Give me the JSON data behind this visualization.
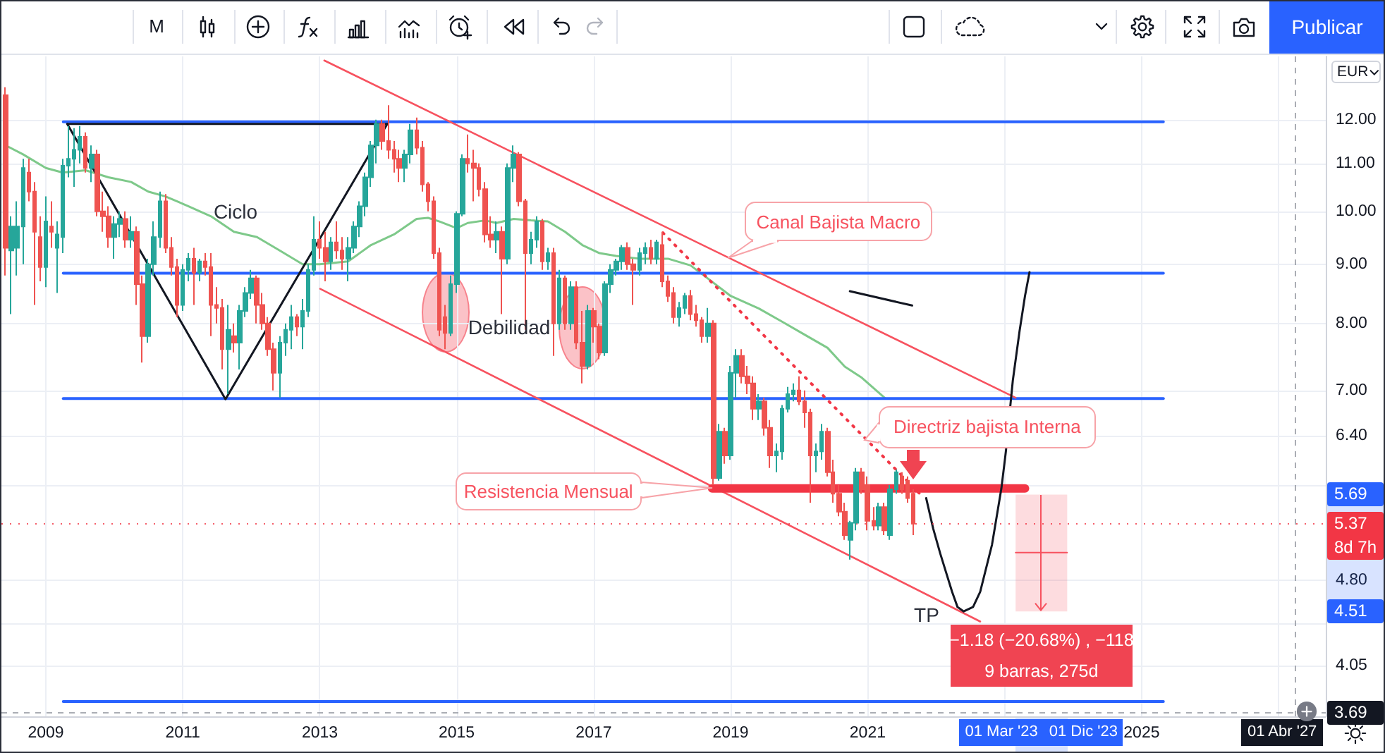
{
  "chart_data": {
    "type": "candlestick",
    "ylabel": "EUR",
    "xlim": [
      "2008-05-09",
      "2027-09-10"
    ],
    "ylim": [
      3.66,
      13.61
    ],
    "log": true,
    "grid": true,
    "xticks": [
      "2009",
      "2011",
      "2013",
      "2015",
      "2017",
      "2019",
      "2021",
      {
        "value": "2023",
        "label": null
      },
      "2025",
      {
        "value": "2027",
        "label": null
      }
    ],
    "yticks": [
      {
        "value": 12,
        "label": "12.00"
      },
      {
        "value": 11,
        "label": "11.00"
      },
      {
        "value": 10,
        "label": "10.00"
      },
      {
        "value": 9,
        "label": "9.00"
      },
      {
        "value": 8,
        "label": "8.00"
      },
      {
        "value": 7,
        "label": "7.00"
      },
      {
        "value": 6.4,
        "label": "6.40"
      },
      {
        "value": 5.8,
        "label": null
      },
      {
        "value": 4.8,
        "label": "4.80"
      },
      {
        "value": 4.4,
        "label": null
      },
      4.05
    ],
    "series": [
      {
        "type": "candlestick",
        "x": [
          "2008-06",
          "2008-07",
          "2008-08",
          "2008-09",
          "2008-10",
          "2008-11",
          "2008-12",
          "2009-01",
          "2009-02",
          "2009-03",
          "2009-04",
          "2009-05",
          "2009-06",
          "2009-07",
          "2009-08",
          "2009-09",
          "2009-10",
          "2009-11",
          "2009-12",
          "2010-01",
          "2010-02",
          "2010-03",
          "2010-04",
          "2010-05",
          "2010-06",
          "2010-07",
          "2010-08",
          "2010-09",
          "2010-10",
          "2010-11",
          "2010-12",
          "2011-01",
          "2011-02",
          "2011-03",
          "2011-04",
          "2011-05",
          "2011-06",
          "2011-07",
          "2011-08",
          "2011-09",
          "2011-10",
          "2011-11",
          "2011-12",
          "2012-01",
          "2012-02",
          "2012-03",
          "2012-04",
          "2012-05",
          "2012-06",
          "2012-07",
          "2012-08",
          "2012-09",
          "2012-10",
          "2012-11",
          "2012-12",
          "2013-01",
          "2013-02",
          "2013-03",
          "2013-04",
          "2013-05",
          "2013-06",
          "2013-07",
          "2013-08",
          "2013-09",
          "2013-10",
          "2013-11",
          "2013-12",
          "2014-01",
          "2014-02",
          "2014-03",
          "2014-04",
          "2014-05",
          "2014-06",
          "2014-07",
          "2014-08",
          "2014-09",
          "2014-10",
          "2014-11",
          "2014-12",
          "2015-01",
          "2015-02",
          "2015-03",
          "2015-04",
          "2015-05",
          "2015-06",
          "2015-07",
          "2015-08",
          "2015-09",
          "2015-10",
          "2015-11",
          "2015-12",
          "2016-01",
          "2016-02",
          "2016-03",
          "2016-04",
          "2016-05",
          "2016-06",
          "2016-07",
          "2016-08",
          "2016-09",
          "2016-10",
          "2016-11",
          "2016-12",
          "2017-01",
          "2017-02",
          "2017-03",
          "2017-04",
          "2017-05",
          "2017-06",
          "2017-07",
          "2017-08",
          "2017-09",
          "2017-10",
          "2017-11",
          "2017-12",
          "2018-01",
          "2018-02",
          "2018-03",
          "2018-04",
          "2018-05",
          "2018-06",
          "2018-07",
          "2018-08",
          "2018-09",
          "2018-10",
          "2018-11",
          "2018-12",
          "2019-01",
          "2019-02",
          "2019-03",
          "2019-04",
          "2019-05",
          "2019-06",
          "2019-07",
          "2019-08",
          "2019-09",
          "2019-10",
          "2019-11",
          "2019-12",
          "2020-01",
          "2020-02",
          "2020-03",
          "2020-04",
          "2020-05",
          "2020-06",
          "2020-07",
          "2020-08",
          "2020-09",
          "2020-10",
          "2020-11",
          "2020-12",
          "2021-01",
          "2021-02",
          "2021-03",
          "2021-04",
          "2021-05",
          "2021-06",
          "2021-07",
          "2021-08",
          "2021-09"
        ],
        "ohlc": [
          [
            12.6,
            12.8,
            8.8,
            9.3
          ],
          [
            9.25,
            9.9,
            8.15,
            9.7
          ],
          [
            9.3,
            10.2,
            8.8,
            9.7
          ],
          [
            9.7,
            11.1,
            9.0,
            10.9
          ],
          [
            10.8,
            11.1,
            10.2,
            10.4
          ],
          [
            10.4,
            10.6,
            8.3,
            9.6
          ],
          [
            9.5,
            9.9,
            8.7,
            8.95
          ],
          [
            8.95,
            10.3,
            8.6,
            9.8
          ],
          [
            9.7,
            10.2,
            9.3,
            9.6
          ],
          [
            9.3,
            9.8,
            8.5,
            9.55
          ],
          [
            9.5,
            11.1,
            9.2,
            10.95
          ],
          [
            10.95,
            11.85,
            10.7,
            11.1
          ],
          [
            11.1,
            11.8,
            10.5,
            11.3
          ],
          [
            11.3,
            11.85,
            11.0,
            11.6
          ],
          [
            11.6,
            11.7,
            10.8,
            10.9
          ],
          [
            10.9,
            11.4,
            10.6,
            11.2
          ],
          [
            11.2,
            11.3,
            9.9,
            10.0
          ],
          [
            10.0,
            10.4,
            9.6,
            9.9
          ],
          [
            9.9,
            10.1,
            9.3,
            9.5
          ],
          [
            9.5,
            9.9,
            9.1,
            9.75
          ],
          [
            9.75,
            10.0,
            9.5,
            9.85
          ],
          [
            9.85,
            10.0,
            9.3,
            9.45
          ],
          [
            9.45,
            9.9,
            9.3,
            9.6
          ],
          [
            9.6,
            9.7,
            8.3,
            8.65
          ],
          [
            8.65,
            8.8,
            7.4,
            7.8
          ],
          [
            7.8,
            9.1,
            7.7,
            9.0
          ],
          [
            9.0,
            9.8,
            8.8,
            9.5
          ],
          [
            9.5,
            10.4,
            9.3,
            10.2
          ],
          [
            10.2,
            10.35,
            9.2,
            9.3
          ],
          [
            9.3,
            9.5,
            8.8,
            8.95
          ],
          [
            8.95,
            9.1,
            8.1,
            8.3
          ],
          [
            8.3,
            9.0,
            8.2,
            8.9
          ],
          [
            8.9,
            9.2,
            8.7,
            9.1
          ],
          [
            9.1,
            9.3,
            8.3,
            8.85
          ],
          [
            8.85,
            9.1,
            8.7,
            9.05
          ],
          [
            9.05,
            9.2,
            8.8,
            8.95
          ],
          [
            8.95,
            9.2,
            7.8,
            8.3
          ],
          [
            8.3,
            8.6,
            8.0,
            8.25
          ],
          [
            8.25,
            8.4,
            7.3,
            7.6
          ],
          [
            7.6,
            8.3,
            6.95,
            7.9
          ],
          [
            7.8,
            8.0,
            7.55,
            7.7
          ],
          [
            7.7,
            8.3,
            7.3,
            8.2
          ],
          [
            8.2,
            8.6,
            8.1,
            8.5
          ],
          [
            8.5,
            8.9,
            8.4,
            8.75
          ],
          [
            8.75,
            8.8,
            8.0,
            8.3
          ],
          [
            8.3,
            8.5,
            7.9,
            8.0
          ],
          [
            8.0,
            8.1,
            7.5,
            7.6
          ],
          [
            7.6,
            7.7,
            7.0,
            7.25
          ],
          [
            7.25,
            7.8,
            6.9,
            7.7
          ],
          [
            7.7,
            8.0,
            7.5,
            7.9
          ],
          [
            7.9,
            8.3,
            7.6,
            8.1
          ],
          [
            8.1,
            8.15,
            7.8,
            7.95
          ],
          [
            7.95,
            8.4,
            7.6,
            8.2
          ],
          [
            8.2,
            9.0,
            8.1,
            8.9
          ],
          [
            8.9,
            9.9,
            8.8,
            9.45
          ],
          [
            9.45,
            9.8,
            9.1,
            9.3
          ],
          [
            9.3,
            9.6,
            8.7,
            9.05
          ],
          [
            9.05,
            9.5,
            8.9,
            9.4
          ],
          [
            9.4,
            9.8,
            9.1,
            9.25
          ],
          [
            9.25,
            9.5,
            8.9,
            9.1
          ],
          [
            9.1,
            9.5,
            8.7,
            9.3
          ],
          [
            9.3,
            9.8,
            9.2,
            9.7
          ],
          [
            9.7,
            10.2,
            9.5,
            10.1
          ],
          [
            10.1,
            10.8,
            9.9,
            10.7
          ],
          [
            10.7,
            11.5,
            10.5,
            11.4
          ],
          [
            11.4,
            12.0,
            11.0,
            11.9
          ],
          [
            11.9,
            12.0,
            11.3,
            11.5
          ],
          [
            11.5,
            12.35,
            11.1,
            11.3
          ],
          [
            11.3,
            11.5,
            10.8,
            11.1
          ],
          [
            11.1,
            11.3,
            10.6,
            10.9
          ],
          [
            10.9,
            11.3,
            10.6,
            11.2
          ],
          [
            11.2,
            11.9,
            11.0,
            11.75
          ],
          [
            11.75,
            12.05,
            11.2,
            11.35
          ],
          [
            11.35,
            11.5,
            10.4,
            10.55
          ],
          [
            10.55,
            10.6,
            10.0,
            10.2
          ],
          [
            10.2,
            10.3,
            9.1,
            9.2
          ],
          [
            9.2,
            9.3,
            7.8,
            7.9
          ],
          [
            8.1,
            8.3,
            7.6,
            7.85
          ],
          [
            7.85,
            8.8,
            7.8,
            8.65
          ],
          [
            8.65,
            10.0,
            8.5,
            9.95
          ],
          [
            9.95,
            11.2,
            9.9,
            11.1
          ],
          [
            11.1,
            11.65,
            10.8,
            11.0
          ],
          [
            11.0,
            11.3,
            10.2,
            10.9
          ],
          [
            10.9,
            11.0,
            10.3,
            10.45
          ],
          [
            10.45,
            10.6,
            9.4,
            9.55
          ],
          [
            9.55,
            9.9,
            9.3,
            9.45
          ],
          [
            9.45,
            9.8,
            9.2,
            9.6
          ],
          [
            9.6,
            9.7,
            8.15,
            9.1
          ],
          [
            9.1,
            11.0,
            9.0,
            10.9
          ],
          [
            10.9,
            11.4,
            10.6,
            11.2
          ],
          [
            11.2,
            11.25,
            10.1,
            10.2
          ],
          [
            10.2,
            10.25,
            7.9,
            9.2
          ],
          [
            9.2,
            9.6,
            9.0,
            9.45
          ],
          [
            9.45,
            9.9,
            9.3,
            9.8
          ],
          [
            9.8,
            9.85,
            8.9,
            9.05
          ],
          [
            9.05,
            9.3,
            8.9,
            9.2
          ],
          [
            9.2,
            9.3,
            7.5,
            8.0
          ],
          [
            8.0,
            8.9,
            7.9,
            8.75
          ],
          [
            8.75,
            8.8,
            7.9,
            8.0
          ],
          [
            8.0,
            8.7,
            7.9,
            8.6
          ],
          [
            8.6,
            8.7,
            7.6,
            7.7
          ],
          [
            7.7,
            8.2,
            7.1,
            7.35
          ],
          [
            7.35,
            8.3,
            7.3,
            8.2
          ],
          [
            8.2,
            8.25,
            7.7,
            7.95
          ],
          [
            7.95,
            8.0,
            7.45,
            7.55
          ],
          [
            7.55,
            8.7,
            7.5,
            8.65
          ],
          [
            8.65,
            9.0,
            8.5,
            8.9
          ],
          [
            8.9,
            9.1,
            8.8,
            9.05
          ],
          [
            9.05,
            9.35,
            8.9,
            9.3
          ],
          [
            9.3,
            9.4,
            8.9,
            9.0
          ],
          [
            9.0,
            9.1,
            8.3,
            8.9
          ],
          [
            8.9,
            9.3,
            8.8,
            9.2
          ],
          [
            9.2,
            9.4,
            9.0,
            9.3
          ],
          [
            9.3,
            9.45,
            9.0,
            9.1
          ],
          [
            9.1,
            9.45,
            9.0,
            9.4
          ],
          [
            9.35,
            9.6,
            8.6,
            8.7
          ],
          [
            8.7,
            8.8,
            8.35,
            8.45
          ],
          [
            8.5,
            8.6,
            8.0,
            8.1
          ],
          [
            8.1,
            8.35,
            7.95,
            8.25
          ],
          [
            8.25,
            8.5,
            8.15,
            8.45
          ],
          [
            8.45,
            8.55,
            8.05,
            8.15
          ],
          [
            8.15,
            8.3,
            7.95,
            8.05
          ],
          [
            8.05,
            8.1,
            7.7,
            7.8
          ],
          [
            7.8,
            8.25,
            7.7,
            8.0
          ],
          [
            8.0,
            8.05,
            5.8,
            5.88
          ],
          [
            5.88,
            6.55,
            5.85,
            6.45
          ],
          [
            6.45,
            6.5,
            6.05,
            6.15
          ],
          [
            6.15,
            7.35,
            6.1,
            7.25
          ],
          [
            7.25,
            7.6,
            6.9,
            7.5
          ],
          [
            7.5,
            7.6,
            7.1,
            7.2
          ],
          [
            7.2,
            7.35,
            6.95,
            7.1
          ],
          [
            7.1,
            7.2,
            6.6,
            6.75
          ],
          [
            6.75,
            6.95,
            6.6,
            6.85
          ],
          [
            6.85,
            6.9,
            6.4,
            6.5
          ],
          [
            6.5,
            6.6,
            6.0,
            6.15
          ],
          [
            6.15,
            6.3,
            5.95,
            6.2
          ],
          [
            6.2,
            6.8,
            6.1,
            6.75
          ],
          [
            6.75,
            7.05,
            6.7,
            6.95
          ],
          [
            6.95,
            7.1,
            6.85,
            7.0
          ],
          [
            7.0,
            7.2,
            6.8,
            6.85
          ],
          [
            6.85,
            7.0,
            6.5,
            6.7
          ],
          [
            6.7,
            6.75,
            5.6,
            6.15
          ],
          [
            6.15,
            6.3,
            5.95,
            6.2
          ],
          [
            6.2,
            6.55,
            6.1,
            6.45
          ],
          [
            6.45,
            6.5,
            5.9,
            5.95
          ],
          [
            5.95,
            6.1,
            5.6,
            5.7
          ],
          [
            5.7,
            5.8,
            5.45,
            5.5
          ],
          [
            5.5,
            5.6,
            5.2,
            5.25
          ],
          [
            5.2,
            5.4,
            5.0,
            5.38
          ],
          [
            5.38,
            6.0,
            5.3,
            5.95
          ],
          [
            5.95,
            6.0,
            5.7,
            5.75
          ],
          [
            5.8,
            5.9,
            5.3,
            5.4
          ],
          [
            5.4,
            5.55,
            5.3,
            5.35
          ],
          [
            5.35,
            5.6,
            5.3,
            5.55
          ],
          [
            5.55,
            5.6,
            5.25,
            5.3
          ],
          [
            5.25,
            5.8,
            5.2,
            5.75
          ],
          [
            5.75,
            5.98,
            5.7,
            5.95
          ],
          [
            5.9,
            5.95,
            5.7,
            5.75
          ],
          [
            5.85,
            5.9,
            5.6,
            5.65
          ],
          [
            5.7,
            5.75,
            5.25,
            5.37
          ]
        ],
        "colors": [
          "#ef5350",
          "#26a69a",
          "#26a69a",
          "#26a69a",
          "#ef5350",
          "#ef5350",
          "#ef5350",
          "#26a69a",
          "#ef5350",
          "#26a69a",
          "#26a69a",
          "#26a69a",
          "#26a69a",
          "#26a69a",
          "#ef5350",
          "#26a69a",
          "#ef5350",
          "#ef5350",
          "#ef5350",
          "#26a69a",
          "#26a69a",
          "#ef5350",
          "#26a69a",
          "#ef5350",
          "#ef5350",
          "#26a69a",
          "#26a69a",
          "#26a69a",
          "#ef5350",
          "#ef5350",
          "#ef5350",
          "#26a69a",
          "#26a69a",
          "#ef5350",
          "#26a69a",
          "#ef5350",
          "#ef5350",
          "#ef5350",
          "#ef5350",
          "#26a69a",
          "#ef5350",
          "#26a69a",
          "#26a69a",
          "#26a69a",
          "#ef5350",
          "#ef5350",
          "#ef5350",
          "#ef5350",
          "#26a69a",
          "#26a69a",
          "#26a69a",
          "#ef5350",
          "#26a69a",
          "#26a69a",
          "#26a69a",
          "#ef5350",
          "#ef5350",
          "#26a69a",
          "#ef5350",
          "#ef5350",
          "#26a69a",
          "#26a69a",
          "#26a69a",
          "#26a69a",
          "#26a69a",
          "#26a69a",
          "#ef5350",
          "#ef5350",
          "#ef5350",
          "#ef5350",
          "#26a69a",
          "#26a69a",
          "#ef5350",
          "#ef5350",
          "#ef5350",
          "#ef5350",
          "#ef5350",
          "#ef5350",
          "#26a69a",
          "#26a69a",
          "#26a69a",
          "#ef5350",
          "#ef5350",
          "#ef5350",
          "#ef5350",
          "#ef5350",
          "#26a69a",
          "#ef5350",
          "#26a69a",
          "#26a69a",
          "#ef5350",
          "#ef5350",
          "#26a69a",
          "#26a69a",
          "#ef5350",
          "#26a69a",
          "#ef5350",
          "#26a69a",
          "#ef5350",
          "#26a69a",
          "#ef5350",
          "#ef5350",
          "#26a69a",
          "#ef5350",
          "#ef5350",
          "#26a69a",
          "#26a69a",
          "#26a69a",
          "#26a69a",
          "#ef5350",
          "#ef5350",
          "#26a69a",
          "#26a69a",
          "#ef5350",
          "#26a69a",
          "#ef5350",
          "#ef5350",
          "#ef5350",
          "#26a69a",
          "#26a69a",
          "#ef5350",
          "#ef5350",
          "#ef5350",
          "#26a69a",
          "#ef5350",
          "#26a69a",
          "#ef5350",
          "#26a69a",
          "#26a69a",
          "#ef5350",
          "#ef5350",
          "#ef5350",
          "#26a69a",
          "#ef5350",
          "#ef5350",
          "#26a69a",
          "#26a69a",
          "#26a69a",
          "#26a69a",
          "#ef5350",
          "#ef5350",
          "#ef5350",
          "#26a69a",
          "#26a69a",
          "#ef5350",
          "#ef5350",
          "#ef5350",
          "#ef5350",
          "#26a69a",
          "#26a69a",
          "#ef5350",
          "#ef5350",
          "#ef5350",
          "#26a69a",
          "#ef5350",
          "#26a69a",
          "#26a69a",
          "#ef5350",
          "#ef5350",
          "#ef5350"
        ]
      },
      {
        "type": "line",
        "color": "#7ec98a",
        "x": [
          "2008-06",
          "2008-09",
          "2009-01",
          "2009-04",
          "2009-08",
          "2009-12",
          "2010-04",
          "2010-07",
          "2010-10",
          "2011-02",
          "2011-06",
          "2011-10",
          "2012-02",
          "2012-06",
          "2012-10",
          "2013-01",
          "2013-06",
          "2013-10",
          "2014-02",
          "2014-06",
          "2014-08",
          "2014-10",
          "2015-01",
          "2015-03",
          "2015-06",
          "2015-08",
          "2015-11",
          "2016-02",
          "2016-05",
          "2016-08",
          "2016-11",
          "2017-02",
          "2017-05",
          "2017-09",
          "2018-02",
          "2018-06",
          "2018-09",
          "2019-01",
          "2019-06",
          "2019-10",
          "2020-02",
          "2020-06",
          "2020-09",
          "2020-12",
          "2021-04"
        ],
        "values": [
          11.4,
          11.2,
          10.9,
          10.8,
          10.85,
          10.7,
          10.6,
          10.4,
          10.3,
          10.1,
          9.9,
          9.6,
          9.5,
          9.25,
          9.0,
          9.0,
          9.05,
          9.35,
          9.55,
          9.85,
          9.87,
          9.8,
          9.67,
          9.77,
          9.82,
          9.77,
          9.85,
          9.82,
          9.8,
          9.6,
          9.35,
          9.2,
          9.15,
          9.1,
          9.1,
          8.98,
          8.75,
          8.45,
          8.24,
          8.03,
          7.82,
          7.62,
          7.34,
          7.18,
          6.9
        ]
      },
      {
        "type": "line",
        "color": "#2962ff",
        "x": [
          "2009-04-04",
          "2025-04-27"
        ],
        "values": [
          11.95,
          11.95
        ]
      },
      {
        "type": "line",
        "color": "#2962ff",
        "x": [
          "2009-04-04",
          "2025-04-27"
        ],
        "values": [
          8.84,
          8.84
        ]
      },
      {
        "type": "line",
        "color": "#2962ff",
        "x": [
          "2009-04-04",
          "2025-04-27"
        ],
        "values": [
          6.89,
          6.89
        ]
      },
      {
        "type": "line",
        "color": "#2962ff",
        "x": [
          "2009-04-04",
          "2025-04-27"
        ],
        "values": [
          3.77,
          3.77
        ]
      },
      {
        "type": "line",
        "color": "#131722",
        "x": [
          "2009-04-25",
          "2011-08-17",
          "2013-12-27"
        ],
        "values": [
          11.9,
          6.88,
          11.9
        ]
      },
      {
        "type": "line",
        "color": "#131722",
        "x": [
          "2009-04-25",
          "2013-12-27"
        ],
        "values": [
          11.9,
          11.9
        ]
      },
      {
        "type": "line",
        "color": "#f7525f",
        "x": [
          "2013-01-25",
          "2023-03-01"
        ],
        "values": [
          13.5,
          6.9
        ]
      },
      {
        "type": "line",
        "color": "#f7525f",
        "x": [
          "2013-01-03",
          "2022-08-24"
        ],
        "values": [
          8.57,
          4.42
        ]
      },
      {
        "type": "line",
        "color": "#f23645",
        "line_style": "dotted",
        "x": [
          "2018-01-05",
          "2021-10-15"
        ],
        "values": [
          9.58,
          5.68
        ]
      },
      {
        "type": "line",
        "color": "#f23645",
        "x": [
          "2018-09-24",
          "2023-04-20"
        ],
        "values": [
          5.76,
          5.76
        ]
      },
      {
        "type": "line",
        "color": "#131722",
        "x": [
          "2020-09-28",
          "2021-08-26"
        ],
        "values": [
          8.53,
          8.29
        ]
      },
      {
        "type": "line",
        "color": "#131722",
        "x": [
          "2021-11-09",
          "2021-12-16",
          "2022-01-23",
          "2022-03-27",
          "2022-04-25",
          "2022-05-28",
          "2022-07-17",
          "2022-08-24",
          "2022-10-26",
          "2022-12-15",
          "2023-01-08",
          "2023-02-03",
          "2023-02-14",
          "2023-03-22",
          "2023-04-20",
          "2023-05-14"
        ],
        "values": [
          5.65,
          5.32,
          5.06,
          4.69,
          4.55,
          4.51,
          4.55,
          4.69,
          5.15,
          5.76,
          6.2,
          6.85,
          7.14,
          7.88,
          8.45,
          8.86
        ]
      },
      {
        "type": "line",
        "color": "#f7525f",
        "x": [
          "2023-03-01",
          "2023-12-01"
        ],
        "values": [
          5.07,
          5.07
        ],
        "lower": [
          4.51,
          4.51
        ],
        "upper": [
          5.69,
          5.69
        ]
      }
    ],
    "ref_lines": [
      {
        "axis": "y",
        "value": 5.37,
        "label": "5.37",
        "color": "#f23645",
        "line_style": "dotted"
      },
      {
        "axis": "y",
        "value": 3.69,
        "label": "3.69",
        "color": "#9598a1",
        "line_style": "dashed"
      },
      {
        "axis": "x",
        "value": "2027-04-01",
        "label": "01 Abr '27",
        "color": "#9598a1",
        "line_style": "dashed"
      }
    ],
    "annotations": [
      {
        "text": "Canal Bajista Macro",
        "x": "2018-12-16",
        "y": 9.11
      },
      {
        "text": "Directriz bajista Interna",
        "x": "2020-12-15",
        "y": 6.35
      },
      {
        "text": "Resistencia Mensual",
        "x": "2018-09-24",
        "y": 5.76
      },
      "Ciclo",
      "Debilidad",
      "TP",
      {
        "text": "−1.18 (−20.68%) , −118",
        "x": "2023-07-17",
        "y": 4.51
      },
      "9 barras, 275d",
      "5.69",
      "4.51",
      "8d 7h",
      "01 Mar '23",
      "01 Dic '23",
      "M",
      "Publicar"
    ]
  }
}
